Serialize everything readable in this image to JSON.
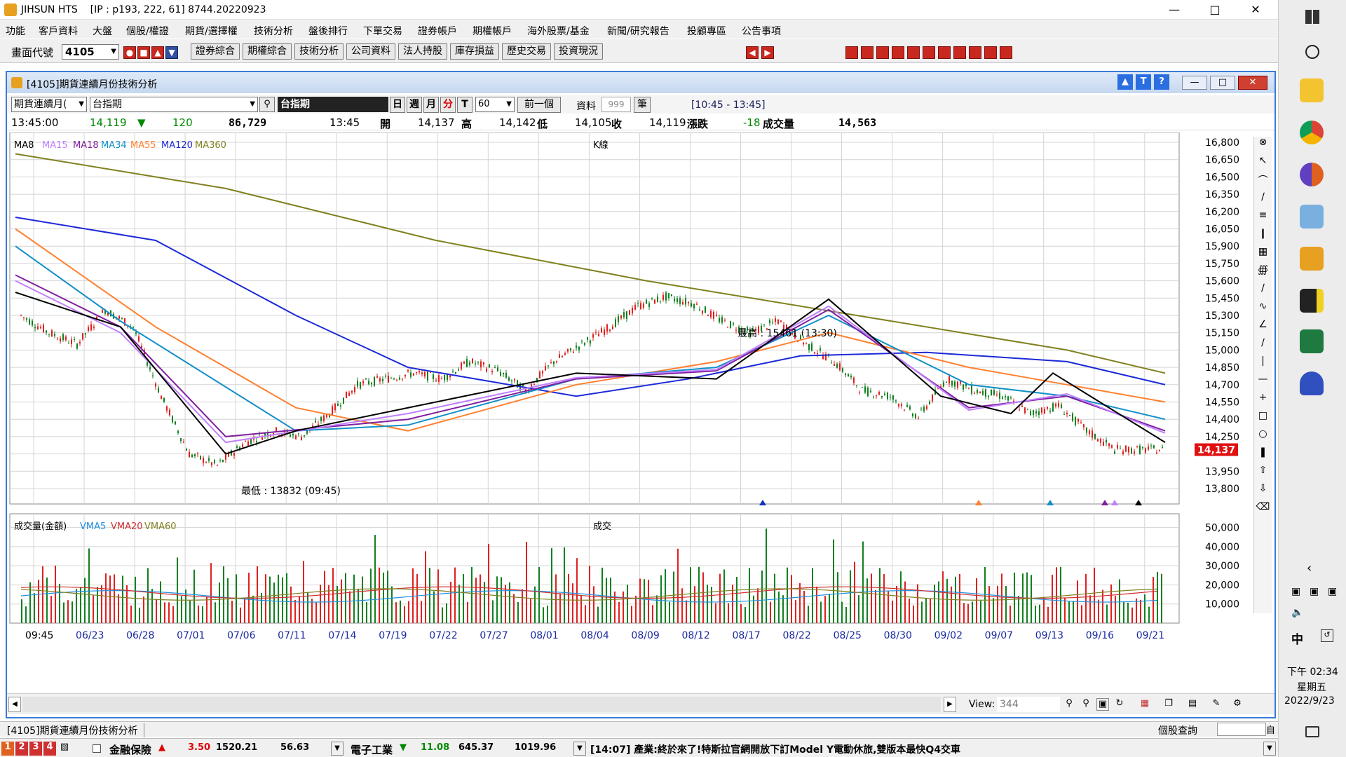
{
  "window": {
    "app": "JIHSUN HTS",
    "ip": "[IP : p193, 222, 61] 8744.20220923"
  },
  "menu": [
    "功能",
    "客戶資料",
    "大盤",
    "個股/權證",
    "期貨/選擇權",
    "技術分析",
    "盤後排行",
    "下單交易",
    "證券帳戶",
    "期權帳戶",
    "海外股票/基金",
    "新聞/研究報告",
    "投顧專區",
    "公告事項"
  ],
  "toolbar": {
    "code_label": "畫面代號",
    "code_value": "4105",
    "buttons": [
      "證券綜合",
      "期權綜合",
      "技術分析",
      "公司資料",
      "法人持股",
      "庫存損益",
      "歷史交易",
      "投資現況"
    ]
  },
  "inner": {
    "title": "[4105]期貨連續月份技術分析",
    "select1": "期貨連續月(",
    "select2": "台指期",
    "name": "台指期",
    "period_buttons": [
      "日",
      "週",
      "月",
      "分",
      "T"
    ],
    "period_value": "60",
    "prev": "前一個",
    "data_label": "資料",
    "data_count": "999",
    "unit": "筆",
    "range": "[10:45 - 13:45]"
  },
  "info": {
    "time": "13:45:00",
    "price": "14,119",
    "change": "120",
    "volume": "86,729",
    "t2": "13:45",
    "open_l": "開",
    "open": "14,137",
    "high_l": "高",
    "high": "14,142",
    "low_l": "低",
    "low": "14,105",
    "close_l": "收",
    "close": "14,119",
    "chg_l": "漲跌",
    "chg": "-18",
    "vol_l": "成交量",
    "vol": "14,563"
  },
  "chart_data": {
    "type": "line",
    "title": "K線",
    "legend": [
      "MA8",
      "MA15",
      "MA18",
      "MA34",
      "MA55",
      "MA120",
      "MA360"
    ],
    "colors": {
      "MA8": "#000000",
      "MA15": "#c080ff",
      "MA18": "#8020a0",
      "MA34": "#1090c8",
      "MA55": "#ff8030",
      "MA120": "#1c2ad8",
      "MA360": "#808020"
    },
    "x_ticks": [
      "09:45",
      "06/23",
      "06/28",
      "07/01",
      "07/06",
      "07/11",
      "07/14",
      "07/19",
      "07/22",
      "07/27",
      "08/01",
      "08/04",
      "08/09",
      "08/12",
      "08/17",
      "08/22",
      "08/25",
      "08/30",
      "09/02",
      "09/07",
      "09/13",
      "09/16",
      "09/21"
    ],
    "y_ticks": [
      "16,800",
      "16,650",
      "16,500",
      "16,350",
      "16,200",
      "16,050",
      "15,900",
      "15,750",
      "15,600",
      "15,450",
      "15,300",
      "15,150",
      "15,000",
      "14,850",
      "14,700",
      "14,550",
      "14,400",
      "14,250",
      "",
      "13,950",
      "13,800"
    ],
    "ylim": [
      13800,
      16800
    ],
    "last_price": "14,137",
    "high_label": "最高 : 15461 (13:30)",
    "low_label": "最低 : 13832 (09:45)",
    "volume_title": "成交",
    "volume_legend": [
      "成交量(金額)",
      "VMA5",
      "VMA20",
      "VMA60"
    ],
    "volume_y_ticks": [
      "50,000",
      "40,000",
      "30,000",
      "20,000",
      "10,000"
    ],
    "volume_ylim": [
      0,
      55000
    ]
  },
  "bottom": {
    "view_label": "View:",
    "view_value": "344"
  },
  "tab": {
    "label": "[4105]期貨連續月份技術分析",
    "right": "個股查詢",
    "btn": "自"
  },
  "ticker": {
    "tabs": [
      "1",
      "2",
      "3",
      "4"
    ],
    "t1_name": "金融保險",
    "t1_chg": "3.50",
    "t1_val": "1520.21",
    "t1_vol": "56.63",
    "t2_name": "電子工業",
    "t2_chg": "11.08",
    "t2_val": "645.37",
    "t2_vol": "1019.96",
    "news": "[14:07] 產業:終於來了!特斯拉官網開放下訂Model Y電動休旅,雙版本最快Q4交車"
  },
  "taskbar": {
    "time": "下午 02:34",
    "day": "星期五",
    "date": "2022/9/23",
    "ime": "中"
  }
}
